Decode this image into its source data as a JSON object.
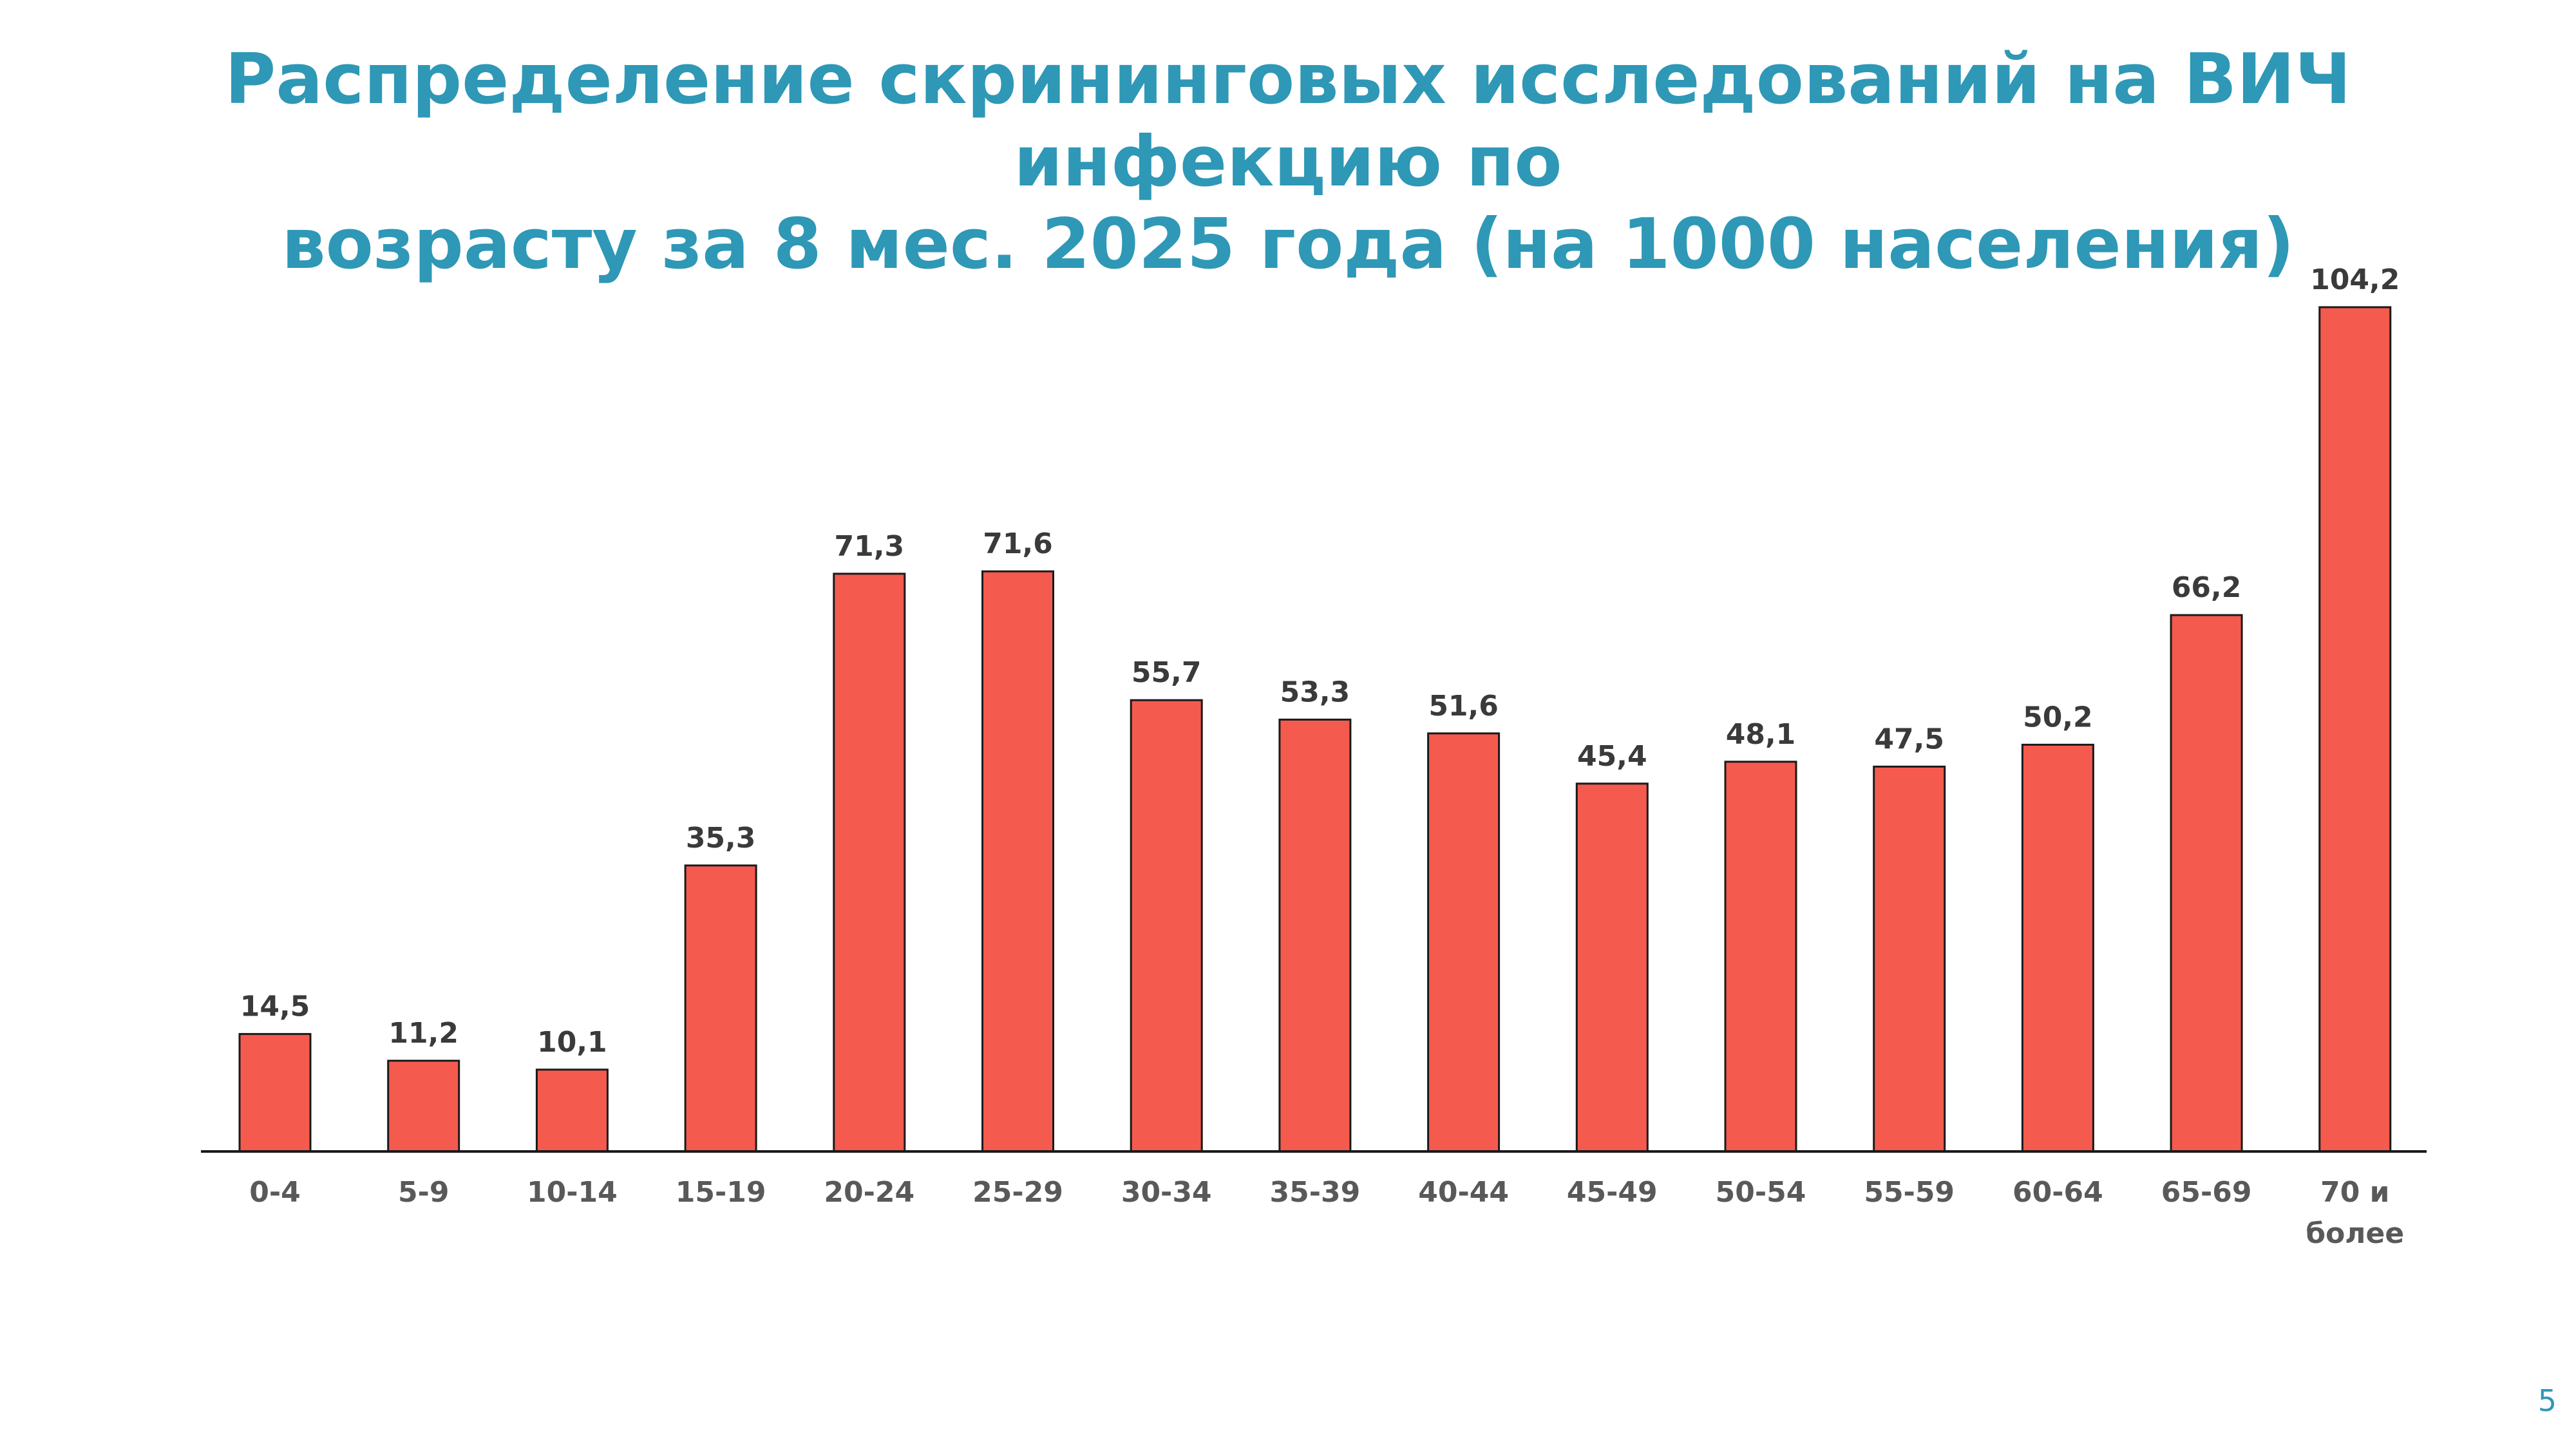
{
  "slide": {
    "title_line1": "Распределение скрининговых исследований на ВИЧ инфекцию по",
    "title_line2": "возрасту за 8 мес. 2025 года (на 1000 населения)",
    "page_number": "5"
  },
  "colors": {
    "title": "#2e98b6",
    "bar_fill": "#f55a4e",
    "bar_stroke": "#1a1a1a",
    "label_text": "#3a3a3a",
    "axis_text": "#595959"
  },
  "chart_data": {
    "type": "bar",
    "categories": [
      "0-4",
      "5-9",
      "10-14",
      "15-19",
      "20-24",
      "25-29",
      "30-34",
      "35-39",
      "40-44",
      "45-49",
      "50-54",
      "55-59",
      "60-64",
      "65-69",
      "70 и более"
    ],
    "values": [
      14.5,
      11.2,
      10.1,
      35.3,
      71.3,
      71.6,
      55.7,
      53.3,
      51.6,
      45.4,
      48.1,
      47.5,
      50.2,
      66.2,
      104.2
    ],
    "data_labels": [
      "14,5",
      "11,2",
      "10,1",
      "35,3",
      "71,3",
      "71,6",
      "55,7",
      "53,3",
      "51,6",
      "45,4",
      "48,1",
      "47,5",
      "50,2",
      "66,2",
      "104,2"
    ],
    "title": "",
    "xlabel": "",
    "ylabel": "",
    "ylim": [
      0,
      104.2
    ],
    "grid": false,
    "legend": "none"
  }
}
